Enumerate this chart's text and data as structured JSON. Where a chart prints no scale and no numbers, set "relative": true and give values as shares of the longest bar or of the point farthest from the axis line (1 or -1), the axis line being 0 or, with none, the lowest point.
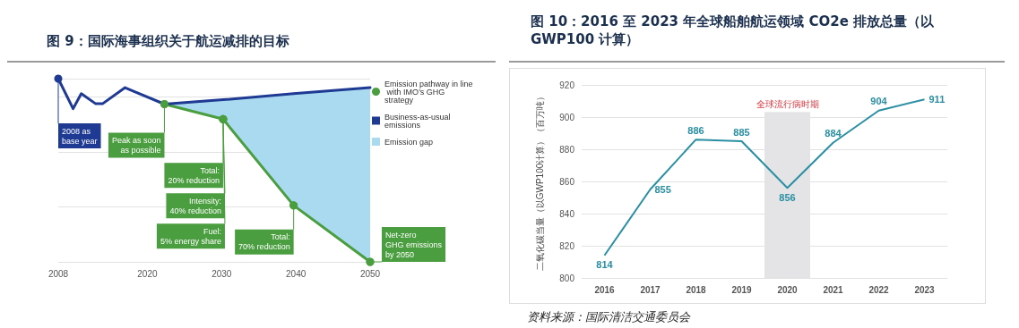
{
  "chart_data": [
    {
      "type": "line",
      "title": "图 9：国际海事组织关于航运减排的目标",
      "relative": true,
      "xlim": [
        2008,
        2050
      ],
      "xticks": [
        2008,
        2020,
        2030,
        2040,
        2050
      ],
      "grid": "y",
      "legend": "right",
      "series": [
        {
          "type": "area",
          "name": "Emission gap",
          "color": "#a9daf0",
          "x": [
            2022.3,
            2030.2,
            2039.7,
            2050
          ],
          "values": [
            0.861,
            0.885,
            0.918,
            0.951
          ]
        },
        {
          "name": "Emission pathway in line with IMO’s GHG strategy",
          "color": "#4a9e3f",
          "marker": "circle",
          "x": [
            2022.3,
            2030.2,
            2039.7,
            2050
          ],
          "values": [
            0.861,
            0.779,
            0.308,
            0
          ]
        },
        {
          "name": "Business-as-usual emissions",
          "color": "#1f3a93",
          "x": [
            2008,
            2010,
            2011.1,
            2013,
            2014,
            2017,
            2018,
            2022.3,
            2030.2,
            2039.7,
            2050
          ],
          "values": [
            1,
            0.836,
            0.918,
            0.864,
            0.864,
            0.951,
            0.934,
            0.861,
            0.885,
            0.918,
            0.951
          ]
        }
      ],
      "annotations": [
        {
          "text": "2008 as\nbase year",
          "x": 2008,
          "y": 1
        },
        {
          "text": "Peak as soon\nas possible",
          "x": 2022.3,
          "y": 0.861
        },
        {
          "text": "Total:\n20% reduction",
          "x": 2030.2,
          "y": 0.779
        },
        {
          "text": "Intensity:\n40% reduction",
          "x": 2030.2,
          "y": 0.779
        },
        {
          "text": "Fuel:\n5% energy share",
          "x": 2030.2,
          "y": 0.779
        },
        {
          "text": "Total:\n70% reduction",
          "x": 2039.7,
          "y": 0.308
        },
        {
          "text": "Net-zero\nGHG emissions\nby 2050",
          "x": 2050,
          "y": 0
        }
      ]
    },
    {
      "type": "line",
      "title": "图 10：2016 至 2023 年全球船舶航运领域 CO2e 排放总量（以 GWP100 计算）",
      "ylabel": "二氧化碳当量（以GWP100计算）（百万吨）",
      "categories": [
        "2016",
        "2017",
        "2018",
        "2019",
        "2020",
        "2021",
        "2022",
        "2023"
      ],
      "series": [
        {
          "color": "#2a8fa3",
          "values": [
            814,
            855,
            886,
            885,
            856,
            884,
            904,
            911
          ]
        }
      ],
      "ylim": [
        800,
        920
      ],
      "yticks": [
        800,
        820,
        840,
        860,
        880,
        900,
        920
      ],
      "grid": "y",
      "data_labels": true,
      "bands": [
        {
          "axis": "x",
          "from": "2020",
          "to": "2020",
          "label": "全球流行病时期",
          "color": "#e4e4e6"
        }
      ],
      "annotations": [
        "资料来源：国际清洁交通委员会"
      ]
    }
  ]
}
